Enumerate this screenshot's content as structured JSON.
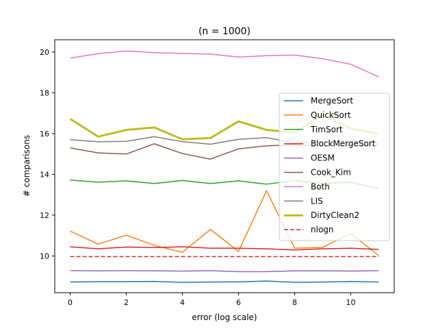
{
  "chart_data": {
    "type": "line",
    "title": "(n = 1000)",
    "xlabel": "error (log scale)",
    "ylabel": "# comparisons",
    "xlim": [
      -0.55,
      11.55
    ],
    "ylim": [
      8.2,
      20.6
    ],
    "xticks": [
      0,
      2,
      4,
      6,
      8,
      10
    ],
    "yticks": [
      10,
      12,
      14,
      16,
      18,
      20
    ],
    "grid": false,
    "legend_position": "right",
    "x": [
      0,
      1,
      2,
      3,
      4,
      5,
      6,
      7,
      8,
      9,
      10,
      11
    ],
    "series": [
      {
        "name": "MergeSort",
        "color": "#1f77b4",
        "style": "solid",
        "width": 1.5,
        "values": [
          8.72,
          8.74,
          8.74,
          8.75,
          8.71,
          8.72,
          8.73,
          8.77,
          8.71,
          8.72,
          8.75,
          8.72
        ]
      },
      {
        "name": "QuickSort",
        "color": "#ff7f0e",
        "style": "solid",
        "width": 1.5,
        "values": [
          11.22,
          10.58,
          11.02,
          10.52,
          10.18,
          11.3,
          10.22,
          13.2,
          10.38,
          10.42,
          11.1,
          10.02
        ]
      },
      {
        "name": "TimSort",
        "color": "#2ca02c",
        "style": "solid",
        "width": 1.5,
        "values": [
          13.72,
          13.62,
          13.68,
          13.55,
          13.7,
          13.55,
          13.68,
          13.52,
          13.7,
          13.55,
          13.62,
          13.3
        ]
      },
      {
        "name": "BlockMergeSort",
        "color": "#d62728",
        "style": "solid",
        "width": 1.5,
        "values": [
          10.45,
          10.35,
          10.44,
          10.41,
          10.45,
          10.38,
          10.38,
          10.35,
          10.29,
          10.35,
          10.38,
          10.32
        ]
      },
      {
        "name": "OESM",
        "color": "#9467bd",
        "style": "solid",
        "width": 1.5,
        "values": [
          9.28,
          9.27,
          9.28,
          9.27,
          9.26,
          9.28,
          9.23,
          9.23,
          9.27,
          9.27,
          9.26,
          9.28
        ]
      },
      {
        "name": "Cook_Kim",
        "color": "#8c564b",
        "style": "solid",
        "width": 1.5,
        "values": [
          15.3,
          15.05,
          15.0,
          15.5,
          15.02,
          14.75,
          15.25,
          15.4,
          15.45,
          15.4,
          15.45,
          15.42
        ]
      },
      {
        "name": "Both",
        "color": "#e377c2",
        "style": "solid",
        "width": 1.5,
        "values": [
          19.7,
          19.92,
          20.05,
          19.97,
          19.93,
          19.9,
          19.75,
          19.82,
          19.85,
          19.67,
          19.4,
          18.78
        ]
      },
      {
        "name": "LIS",
        "color": "#7f7f7f",
        "style": "solid",
        "width": 1.5,
        "values": [
          15.7,
          15.6,
          15.62,
          15.85,
          15.6,
          15.48,
          15.72,
          15.8,
          15.55,
          15.6,
          15.65,
          15.55
        ]
      },
      {
        "name": "DirtyClean2",
        "color": "#bcbd22",
        "style": "solid",
        "width": 3,
        "values": [
          16.72,
          15.85,
          16.18,
          16.3,
          15.72,
          15.78,
          16.6,
          16.18,
          16.05,
          16.95,
          16.25,
          15.98
        ]
      },
      {
        "name": "nlogn",
        "color": "#d62728",
        "style": "dashed",
        "width": 1.5,
        "values": [
          9.97,
          9.97,
          9.97,
          9.97,
          9.97,
          9.97,
          9.97,
          9.97,
          9.97,
          9.97,
          9.97,
          9.97
        ]
      }
    ]
  }
}
